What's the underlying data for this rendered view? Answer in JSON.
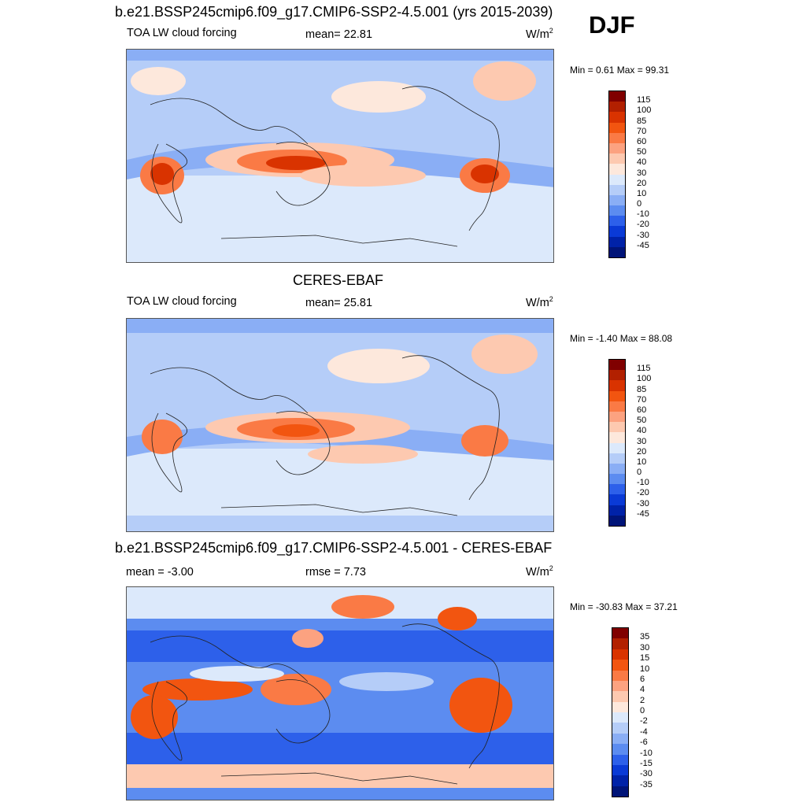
{
  "season": "DJF",
  "panels": [
    {
      "title": "b.e21.BSSP245cmip6.f09_g17.CMIP6-SSP2-4.5.001 (yrs 2015-2039)",
      "left_label": "TOA LW cloud forcing",
      "center_label": "mean=  22.81",
      "units": "W/m",
      "units_sup": "2",
      "minmax": "Min =   0.61 Max =  99.31",
      "colorbar": {
        "levels": [
          "115",
          "100",
          "85",
          "70",
          "60",
          "50",
          "40",
          "30",
          "20",
          "10",
          "0",
          "-10",
          "-20",
          "-30",
          "-45"
        ],
        "colors": [
          "#800000",
          "#b22000",
          "#d93300",
          "#f25510",
          "#fa7a45",
          "#fca280",
          "#fdc9b0",
          "#fde8dc",
          "#dce9fb",
          "#b5cdf8",
          "#8aaef5",
          "#5c8cf0",
          "#2d60ea",
          "#0a3ad6",
          "#0022a8",
          "#001478"
        ]
      }
    },
    {
      "title": "CERES-EBAF",
      "left_label": "TOA LW cloud forcing",
      "center_label": "mean=  25.81",
      "units": "W/m",
      "units_sup": "2",
      "minmax": "Min =  -1.40 Max =  88.08",
      "colorbar": {
        "levels": [
          "115",
          "100",
          "85",
          "70",
          "60",
          "50",
          "40",
          "30",
          "20",
          "10",
          "0",
          "-10",
          "-20",
          "-30",
          "-45"
        ],
        "colors": [
          "#800000",
          "#b22000",
          "#d93300",
          "#f25510",
          "#fa7a45",
          "#fca280",
          "#fdc9b0",
          "#fde8dc",
          "#dce9fb",
          "#b5cdf8",
          "#8aaef5",
          "#5c8cf0",
          "#2d60ea",
          "#0a3ad6",
          "#0022a8",
          "#001478"
        ]
      }
    },
    {
      "title": "b.e21.BSSP245cmip6.f09_g17.CMIP6-SSP2-4.5.001 - CERES-EBAF",
      "left_label": "mean =  -3.00",
      "center_label": "rmse =   7.73",
      "units": "W/m",
      "units_sup": "2",
      "minmax": "Min = -30.83 Max =  37.21",
      "colorbar": {
        "levels": [
          "35",
          "30",
          "15",
          "10",
          "6",
          "4",
          "2",
          "0",
          "-2",
          "-4",
          "-6",
          "-10",
          "-15",
          "-30",
          "-35"
        ],
        "colors": [
          "#800000",
          "#b22000",
          "#d93300",
          "#f25510",
          "#fa7a45",
          "#fca280",
          "#fdc9b0",
          "#fde8dc",
          "#dce9fb",
          "#b5cdf8",
          "#8aaef5",
          "#5c8cf0",
          "#2d60ea",
          "#0a3ad6",
          "#0022a8",
          "#001478"
        ]
      }
    }
  ]
}
